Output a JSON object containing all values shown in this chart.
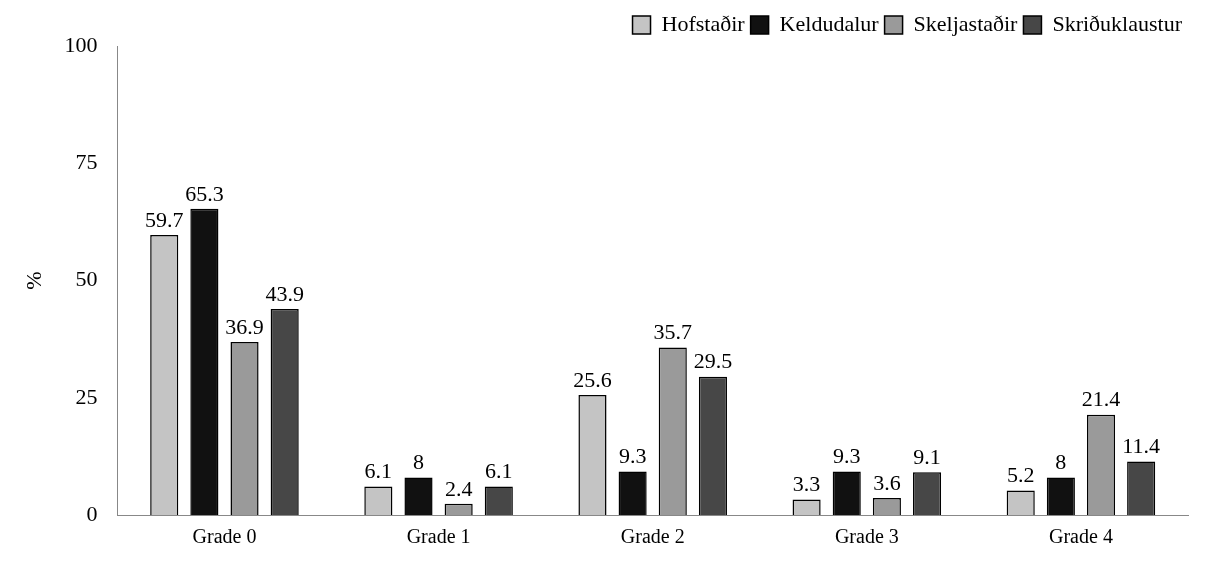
{
  "chart_data": {
    "type": "bar",
    "ylabel": "%",
    "categories": [
      "Grade 0",
      "Grade 1",
      "Grade 2",
      "Grade 3",
      "Grade 4"
    ],
    "series": [
      {
        "name": "Hofstaðir",
        "color": "#c4c4c4",
        "values": [
          59.7,
          6.1,
          25.6,
          3.3,
          5.2
        ]
      },
      {
        "name": "Keldudalur",
        "color": "#111111",
        "values": [
          65.3,
          8,
          9.3,
          9.3,
          8
        ]
      },
      {
        "name": "Skeljastaðir",
        "color": "#9a9a9a",
        "values": [
          36.9,
          2.4,
          35.7,
          3.6,
          21.4
        ]
      },
      {
        "name": "Skriðuklaustur",
        "color": "#474747",
        "values": [
          43.9,
          6.1,
          29.5,
          9.1,
          11.4
        ]
      }
    ],
    "ylim": [
      0,
      100
    ],
    "yticks": [
      0,
      25,
      50,
      75,
      100
    ],
    "grid": false,
    "legend": "top right",
    "data_labels": true
  }
}
